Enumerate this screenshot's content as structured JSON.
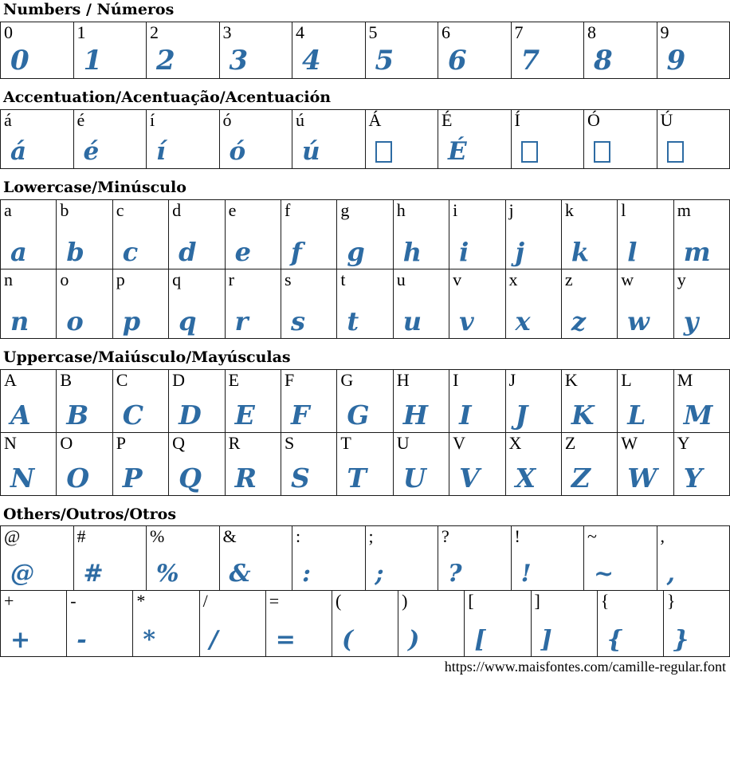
{
  "accent_color": "#2d6ba3",
  "font_name": "camille-regular",
  "footer": {
    "url": "https://www.maisfontes.com/camille-regular.font"
  },
  "sections": [
    {
      "title": "Numbers / Números",
      "rows": [
        [
          "0",
          "1",
          "2",
          "3",
          "4",
          "5",
          "6",
          "7",
          "8",
          "9"
        ]
      ]
    },
    {
      "title": "Accentuation/Acentuação/Acentuación",
      "rows": [
        [
          "á",
          "é",
          "í",
          "ó",
          "ú",
          {
            "ch": "Á",
            "missing": true
          },
          {
            "ch": "É",
            "missing": false
          },
          {
            "ch": "Í",
            "missing": true
          },
          {
            "ch": "Ó",
            "missing": true
          },
          {
            "ch": "Ú",
            "missing": true
          }
        ]
      ]
    },
    {
      "title": "Lowercase/Minúsculo",
      "rows": [
        [
          "a",
          "b",
          "c",
          "d",
          "e",
          "f",
          "g",
          "h",
          "i",
          "j",
          "k",
          "l",
          "m"
        ],
        [
          "n",
          "o",
          "p",
          "q",
          "r",
          "s",
          "t",
          "u",
          "v",
          "x",
          "z",
          "w",
          "y"
        ]
      ]
    },
    {
      "title": "Uppercase/Maiúsculo/Mayúsculas",
      "rows": [
        [
          "A",
          "B",
          "C",
          "D",
          "E",
          "F",
          "G",
          "H",
          "I",
          "J",
          "K",
          "L",
          "M"
        ],
        [
          "N",
          "O",
          "P",
          "Q",
          "R",
          "S",
          "T",
          "U",
          "V",
          "X",
          "Z",
          "W",
          "Y"
        ]
      ]
    },
    {
      "title": "Others/Outros/Otros",
      "rows": [
        [
          "@",
          "#",
          "%",
          "&",
          ":",
          ";",
          "?",
          "!",
          "~",
          ","
        ],
        [
          "+",
          "-",
          "*",
          "/",
          "=",
          "(",
          ")",
          "[",
          "]",
          "{",
          "}"
        ]
      ]
    }
  ]
}
